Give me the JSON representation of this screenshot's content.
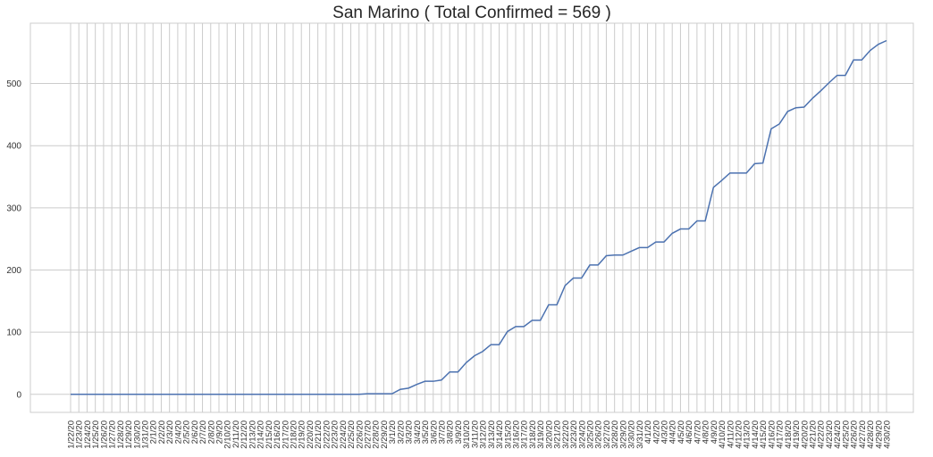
{
  "chart_data": {
    "type": "line",
    "title": "San Marino ( Total Confirmed = 569 )",
    "xlabel": "",
    "ylabel": "",
    "grid": true,
    "legend": "none",
    "ylim": [
      -29,
      597
    ],
    "yticks": [
      0,
      100,
      200,
      300,
      400,
      500
    ],
    "line_color": "#4c72b0",
    "x": [
      "1/22/20",
      "1/23/20",
      "1/24/20",
      "1/25/20",
      "1/26/20",
      "1/27/20",
      "1/28/20",
      "1/29/20",
      "1/30/20",
      "1/31/20",
      "2/1/20",
      "2/2/20",
      "2/3/20",
      "2/4/20",
      "2/5/20",
      "2/6/20",
      "2/7/20",
      "2/8/20",
      "2/9/20",
      "2/10/20",
      "2/11/20",
      "2/12/20",
      "2/13/20",
      "2/14/20",
      "2/15/20",
      "2/16/20",
      "2/17/20",
      "2/18/20",
      "2/19/20",
      "2/20/20",
      "2/21/20",
      "2/22/20",
      "2/23/20",
      "2/24/20",
      "2/25/20",
      "2/26/20",
      "2/27/20",
      "2/28/20",
      "2/29/20",
      "3/1/20",
      "3/2/20",
      "3/3/20",
      "3/4/20",
      "3/5/20",
      "3/6/20",
      "3/7/20",
      "3/8/20",
      "3/9/20",
      "3/10/20",
      "3/11/20",
      "3/12/20",
      "3/13/20",
      "3/14/20",
      "3/15/20",
      "3/16/20",
      "3/17/20",
      "3/18/20",
      "3/19/20",
      "3/20/20",
      "3/21/20",
      "3/22/20",
      "3/23/20",
      "3/24/20",
      "3/25/20",
      "3/26/20",
      "3/27/20",
      "3/28/20",
      "3/29/20",
      "3/30/20",
      "3/31/20",
      "4/1/20",
      "4/2/20",
      "4/3/20",
      "4/4/20",
      "4/5/20",
      "4/6/20",
      "4/7/20",
      "4/8/20",
      "4/9/20",
      "4/10/20",
      "4/11/20",
      "4/12/20",
      "4/13/20",
      "4/14/20",
      "4/15/20",
      "4/16/20",
      "4/17/20",
      "4/18/20",
      "4/19/20",
      "4/20/20",
      "4/21/20",
      "4/22/20",
      "4/23/20",
      "4/24/20",
      "4/25/20",
      "4/26/20",
      "4/27/20",
      "4/28/20",
      "4/29/20",
      "4/30/20"
    ],
    "series": [
      {
        "values": [
          0,
          0,
          0,
          0,
          0,
          0,
          0,
          0,
          0,
          0,
          0,
          0,
          0,
          0,
          0,
          0,
          0,
          0,
          0,
          0,
          0,
          0,
          0,
          0,
          0,
          0,
          0,
          0,
          0,
          0,
          0,
          0,
          0,
          0,
          0,
          0,
          1,
          1,
          1,
          1,
          8,
          10,
          16,
          21,
          21,
          23,
          36,
          36,
          51,
          62,
          69,
          80,
          80,
          101,
          109,
          109,
          119,
          119,
          144,
          144,
          175,
          187,
          187,
          208,
          208,
          223,
          224,
          224,
          230,
          236,
          236,
          245,
          245,
          259,
          266,
          266,
          279,
          279,
          333,
          344,
          356,
          356,
          356,
          371,
          372,
          427,
          435,
          455,
          461,
          462,
          476,
          488,
          501,
          513,
          513,
          538,
          538,
          553,
          563,
          569
        ]
      }
    ]
  }
}
